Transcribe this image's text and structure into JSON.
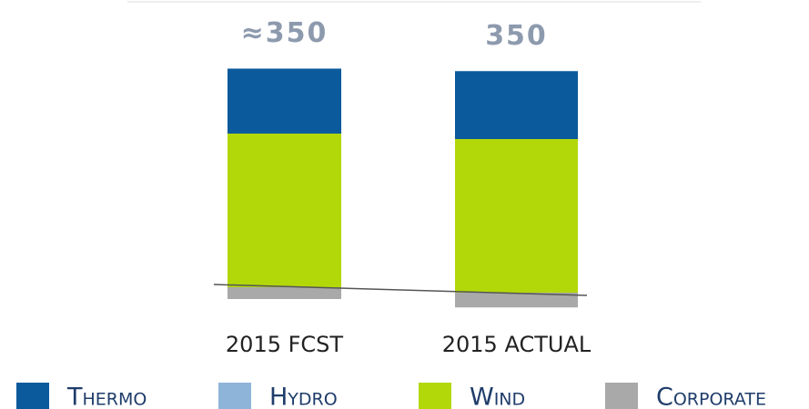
{
  "chart_data": {
    "type": "stacked_bar",
    "categories": [
      "2015 FCST",
      "2015 ACTUAL"
    ],
    "totals": [
      350,
      350
    ],
    "total_labels": [
      "≈350",
      "350"
    ],
    "series": [
      {
        "name": "Thermo",
        "color": "#0b5a9c",
        "values": [
          110,
          115
        ]
      },
      {
        "name": "Hydro",
        "color": "#8fb4d9",
        "values": [
          0,
          0
        ]
      },
      {
        "name": "Wind",
        "color": "#b2d80a",
        "values": [
          260,
          260
        ]
      },
      {
        "name": "Corporate",
        "color": "#a9a9a9",
        "values": [
          -20,
          -25
        ]
      }
    ]
  }
}
